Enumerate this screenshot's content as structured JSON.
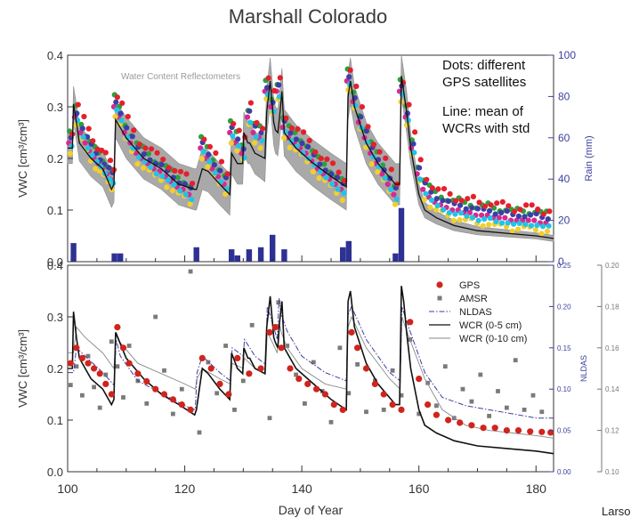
{
  "figure": {
    "title": "Marshall Colorado",
    "xlabel": "Day of Year",
    "footer_text": "Larso"
  },
  "chart_data": [
    {
      "type": "scatter",
      "title": "",
      "xlabel": "",
      "ylabel": "VWC [cm³/cm³]",
      "xlim": [
        100,
        183
      ],
      "ylim": [
        0,
        0.4
      ],
      "yticks": [
        "0.0",
        "0.1",
        "0.2",
        "0.3",
        "0.4"
      ],
      "y2label": "Rain (mm)",
      "y2lim": [
        0,
        100
      ],
      "y2ticks": [
        "0",
        "20",
        "40",
        "60",
        "80",
        "100"
      ],
      "inset_label": "Water Content Reflectometers",
      "annotations": [
        "Dots: different",
        "GPS satellites",
        "Line: mean of",
        "WCRs with std"
      ],
      "rain": {
        "days": [
          101,
          108,
          109,
          122,
          128,
          129,
          131,
          133,
          135,
          137,
          147,
          148,
          156,
          157
        ],
        "mm": [
          9,
          4,
          4,
          7,
          6,
          3,
          6,
          7,
          13,
          6,
          7,
          10,
          4,
          26
        ]
      },
      "wcr_mean": {
        "x": [
          100,
          100.8,
          101,
          101.5,
          102,
          104,
          106,
          107.5,
          107.9,
          108.2,
          110,
          113,
          116,
          119,
          121.7,
          122,
          123,
          124,
          126,
          127.7,
          128,
          129,
          129.9,
          130.1,
          130.8,
          131.1,
          132,
          133.7,
          134,
          134.6,
          135.2,
          135.5,
          135.9,
          136.2,
          136.6,
          137,
          139,
          142,
          145,
          147.6,
          147.9,
          148.3,
          149,
          151,
          153,
          156,
          156.7,
          157,
          157.4,
          157.9,
          158.6,
          160,
          161,
          163,
          166,
          170,
          175,
          180,
          183
        ],
        "y": [
          0.22,
          0.22,
          0.305,
          0.27,
          0.23,
          0.2,
          0.18,
          0.14,
          0.15,
          0.275,
          0.24,
          0.2,
          0.18,
          0.15,
          0.14,
          0.14,
          0.18,
          0.175,
          0.15,
          0.13,
          0.21,
          0.19,
          0.19,
          0.25,
          0.23,
          0.23,
          0.21,
          0.2,
          0.29,
          0.35,
          0.27,
          0.255,
          0.25,
          0.28,
          0.33,
          0.25,
          0.22,
          0.19,
          0.165,
          0.145,
          0.32,
          0.35,
          0.3,
          0.23,
          0.19,
          0.15,
          0.15,
          0.36,
          0.33,
          0.29,
          0.22,
          0.13,
          0.1,
          0.085,
          0.07,
          0.06,
          0.055,
          0.05,
          0.045
        ],
        "std": [
          0.03,
          0.03,
          0.035,
          0.035,
          0.035,
          0.035,
          0.035,
          0.035,
          0.035,
          0.035,
          0.04,
          0.04,
          0.04,
          0.04,
          0.04,
          0.04,
          0.04,
          0.04,
          0.04,
          0.04,
          0.04,
          0.04,
          0.04,
          0.04,
          0.04,
          0.04,
          0.04,
          0.045,
          0.045,
          0.045,
          0.045,
          0.045,
          0.045,
          0.045,
          0.045,
          0.045,
          0.045,
          0.045,
          0.045,
          0.045,
          0.045,
          0.045,
          0.04,
          0.04,
          0.04,
          0.04,
          0.04,
          0.04,
          0.04,
          0.04,
          0.03,
          0.02,
          0.015,
          0.012,
          0.01,
          0.008,
          0.007,
          0.006,
          0.006
        ]
      },
      "gps_satellites": {
        "colors": [
          "#d62a8f",
          "#2f9f3a",
          "#f2cf2e",
          "#3a3fa8",
          "#21c3e6",
          "#e4202d"
        ],
        "x": [
          100.5,
          101.5,
          102.5,
          103.3,
          104,
          104.8,
          105.5,
          106.2,
          107,
          107.6,
          108.2,
          109,
          110,
          111,
          112,
          113,
          114,
          115,
          116,
          117,
          118,
          119,
          120,
          121,
          123,
          124,
          125,
          126,
          127,
          128,
          129,
          130,
          131,
          132,
          133,
          134,
          135,
          136,
          137,
          138,
          139,
          140,
          141,
          142,
          143,
          144,
          145,
          146,
          147,
          148,
          149,
          150,
          151,
          152,
          153,
          154,
          155,
          156,
          157,
          158,
          159,
          160,
          161,
          162,
          163,
          164,
          165,
          166,
          167,
          168,
          169,
          170,
          171,
          172,
          173,
          174,
          175,
          176,
          177,
          178,
          179,
          180,
          181,
          182
        ],
        "y": [
          0.23,
          0.28,
          0.25,
          0.23,
          0.215,
          0.2,
          0.19,
          0.18,
          0.17,
          0.16,
          0.3,
          0.28,
          0.25,
          0.23,
          0.21,
          0.2,
          0.19,
          0.18,
          0.175,
          0.165,
          0.155,
          0.145,
          0.14,
          0.13,
          0.22,
          0.2,
          0.18,
          0.165,
          0.15,
          0.25,
          0.23,
          0.21,
          0.28,
          0.25,
          0.24,
          0.33,
          0.3,
          0.33,
          0.26,
          0.24,
          0.23,
          0.22,
          0.21,
          0.195,
          0.18,
          0.17,
          0.16,
          0.15,
          0.14,
          0.35,
          0.31,
          0.27,
          0.24,
          0.21,
          0.19,
          0.17,
          0.15,
          0.13,
          0.33,
          0.28,
          0.22,
          0.17,
          0.14,
          0.125,
          0.115,
          0.11,
          0.105,
          0.1,
          0.1,
          0.095,
          0.095,
          0.09,
          0.09,
          0.09,
          0.085,
          0.085,
          0.085,
          0.08,
          0.08,
          0.08,
          0.08,
          0.08,
          0.075,
          0.075
        ]
      }
    },
    {
      "type": "line",
      "title": "",
      "xlabel": "Day of Year",
      "ylabel": "VWC [cm³/cm³]",
      "xlim": [
        100,
        183
      ],
      "ylim": [
        0,
        0.4
      ],
      "xticks": [
        "100",
        "120",
        "140",
        "160",
        "180"
      ],
      "yticks": [
        "0.0",
        "0.1",
        "0.2",
        "0.3",
        "0.4"
      ],
      "y2label": "NLDAS",
      "y2lim": [
        0,
        0.25
      ],
      "y2ticks": [
        "0.00",
        "0.05",
        "0.10",
        "0.15",
        "0.20",
        "0.25"
      ],
      "y3label": "AMSR",
      "y3lim": [
        0.1,
        0.2
      ],
      "y3ticks": [
        "0.10",
        "0.12",
        "0.14",
        "0.16",
        "0.18",
        "0.20"
      ],
      "legend_position": "top-right",
      "legend": [
        "GPS",
        "AMSR",
        "NLDAS",
        "WCR (0-5 cm)",
        "WCR (0-10 cm)"
      ],
      "series": [
        {
          "name": "GPS",
          "color": "#d0241c",
          "x": [
            100.5,
            101.5,
            102.5,
            103.5,
            104.5,
            105.5,
            106.5,
            107.5,
            108.5,
            109.5,
            110.5,
            112,
            113.5,
            115,
            116.5,
            118,
            119.5,
            121,
            123,
            124.5,
            126,
            127.5,
            129,
            131,
            133,
            134.5,
            135.5,
            136.5,
            138,
            139.5,
            141,
            142.5,
            144,
            145.5,
            147,
            148.5,
            149.5,
            151,
            152.5,
            154,
            155.5,
            157,
            158.5,
            160,
            161.5,
            163,
            165,
            167,
            169,
            171,
            173,
            175,
            177,
            179,
            181,
            182.5
          ],
          "y": [
            0.21,
            0.24,
            0.22,
            0.21,
            0.2,
            0.19,
            0.17,
            0.15,
            0.28,
            0.24,
            0.21,
            0.19,
            0.175,
            0.16,
            0.15,
            0.14,
            0.13,
            0.12,
            0.22,
            0.2,
            0.17,
            0.15,
            0.22,
            0.19,
            0.2,
            0.27,
            0.28,
            0.24,
            0.2,
            0.18,
            0.17,
            0.16,
            0.15,
            0.13,
            0.12,
            0.27,
            0.24,
            0.2,
            0.17,
            0.15,
            0.13,
            0.12,
            0.29,
            0.18,
            0.13,
            0.11,
            0.1,
            0.095,
            0.09,
            0.085,
            0.085,
            0.08,
            0.08,
            0.078,
            0.077,
            0.076
          ]
        },
        {
          "name": "AMSR",
          "color": "#7a7a7a",
          "x": [
            100.5,
            101.5,
            102.5,
            103.5,
            104.5,
            105.5,
            106.5,
            107.5,
            108.5,
            109.5,
            110.5,
            112,
            113.5,
            115,
            116.5,
            118,
            119.5,
            121,
            122.5,
            124,
            125.5,
            127,
            128.5,
            130,
            131.5,
            133,
            134.5,
            136,
            137.5,
            139,
            140.5,
            142,
            143.5,
            145,
            146.5,
            148,
            149.5,
            151,
            152.5,
            154,
            155.5,
            157,
            158.5,
            160,
            161.5,
            163,
            164.5,
            166,
            167.5,
            169,
            170.5,
            172,
            173.5,
            175,
            176.5,
            178,
            179.5,
            181
          ],
          "y": [
            0.142,
            0.151,
            0.137,
            0.156,
            0.141,
            0.131,
            0.147,
            0.163,
            0.151,
            0.136,
            0.161,
            0.144,
            0.133,
            0.175,
            0.149,
            0.128,
            0.14,
            0.197,
            0.119,
            0.153,
            0.138,
            0.161,
            0.13,
            0.144,
            0.171,
            0.15,
            0.126,
            0.182,
            0.161,
            0.147,
            0.133,
            0.153,
            0.139,
            0.124,
            0.16,
            0.138,
            0.152,
            0.129,
            0.144,
            0.13,
            0.149,
            0.137,
            0.164,
            0.128,
            0.143,
            0.132,
            0.151,
            0.126,
            0.14,
            0.134,
            0.147,
            0.127,
            0.139,
            0.131,
            0.154,
            0.13,
            0.137,
            0.129
          ]
        },
        {
          "name": "NLDAS",
          "color": "#3c3f9e",
          "x": [
            100,
            101,
            101.5,
            103,
            106,
            107.9,
            108.3,
            109,
            112,
            116,
            120,
            121.8,
            122.1,
            123,
            126,
            127.8,
            128.1,
            130,
            130.2,
            132,
            133.8,
            134.1,
            135,
            135.8,
            136.1,
            136.5,
            137.5,
            140,
            144,
            147.6,
            147.9,
            148.5,
            151,
            155,
            156.8,
            157.1,
            158,
            161,
            164,
            168,
            172,
            176,
            180,
            183
          ],
          "y": [
            0.12,
            0.12,
            0.15,
            0.14,
            0.12,
            0.105,
            0.16,
            0.14,
            0.11,
            0.095,
            0.08,
            0.075,
            0.12,
            0.14,
            0.12,
            0.11,
            0.15,
            0.14,
            0.16,
            0.14,
            0.13,
            0.2,
            0.18,
            0.16,
            0.21,
            0.19,
            0.17,
            0.14,
            0.12,
            0.11,
            0.19,
            0.2,
            0.16,
            0.12,
            0.11,
            0.2,
            0.18,
            0.12,
            0.09,
            0.08,
            0.075,
            0.07,
            0.065,
            0.065
          ]
        },
        {
          "name": "WCR (0-5 cm)",
          "color": "#111111",
          "x": [
            100,
            100.8,
            101,
            101.5,
            102,
            104,
            106,
            107.5,
            107.9,
            108.2,
            110,
            113,
            116,
            119,
            121.7,
            122,
            123,
            124,
            126,
            127.7,
            128,
            129,
            129.9,
            130.1,
            130.8,
            131.1,
            132,
            133.7,
            134,
            134.6,
            135.2,
            135.5,
            135.9,
            136.2,
            136.6,
            137,
            139,
            142,
            145,
            147.6,
            147.9,
            148.3,
            149,
            151,
            153,
            156,
            156.7,
            157,
            157.4,
            157.9,
            158.6,
            160,
            161,
            163,
            166,
            170,
            175,
            180,
            183
          ],
          "y": [
            0.2,
            0.2,
            0.31,
            0.26,
            0.22,
            0.18,
            0.16,
            0.13,
            0.14,
            0.27,
            0.22,
            0.18,
            0.15,
            0.13,
            0.11,
            0.12,
            0.2,
            0.19,
            0.16,
            0.14,
            0.23,
            0.2,
            0.19,
            0.24,
            0.22,
            0.22,
            0.2,
            0.19,
            0.28,
            0.34,
            0.26,
            0.25,
            0.24,
            0.29,
            0.33,
            0.24,
            0.2,
            0.17,
            0.14,
            0.12,
            0.33,
            0.35,
            0.28,
            0.21,
            0.17,
            0.13,
            0.13,
            0.36,
            0.33,
            0.27,
            0.2,
            0.12,
            0.09,
            0.075,
            0.06,
            0.05,
            0.045,
            0.04,
            0.035
          ]
        },
        {
          "name": "WCR (0-10 cm)",
          "color": "#8a8a8a",
          "x": [
            100,
            101,
            101.5,
            103,
            106,
            107.9,
            108.3,
            109,
            112,
            116,
            120,
            121.8,
            122.1,
            123,
            126,
            127.8,
            128.1,
            130,
            130.2,
            132,
            133.8,
            134.1,
            135,
            135.8,
            136.1,
            136.5,
            137.5,
            140,
            144,
            147.6,
            147.9,
            148.5,
            151,
            155,
            156.8,
            157.1,
            158,
            161,
            164,
            168,
            172,
            176,
            180,
            183
          ],
          "y": [
            0.23,
            0.23,
            0.28,
            0.26,
            0.23,
            0.2,
            0.27,
            0.25,
            0.21,
            0.19,
            0.17,
            0.16,
            0.18,
            0.2,
            0.18,
            0.17,
            0.21,
            0.2,
            0.22,
            0.2,
            0.19,
            0.27,
            0.25,
            0.23,
            0.29,
            0.27,
            0.24,
            0.2,
            0.17,
            0.16,
            0.28,
            0.3,
            0.24,
            0.18,
            0.16,
            0.3,
            0.27,
            0.18,
            0.12,
            0.09,
            0.08,
            0.075,
            0.07,
            0.065
          ]
        }
      ]
    }
  ]
}
